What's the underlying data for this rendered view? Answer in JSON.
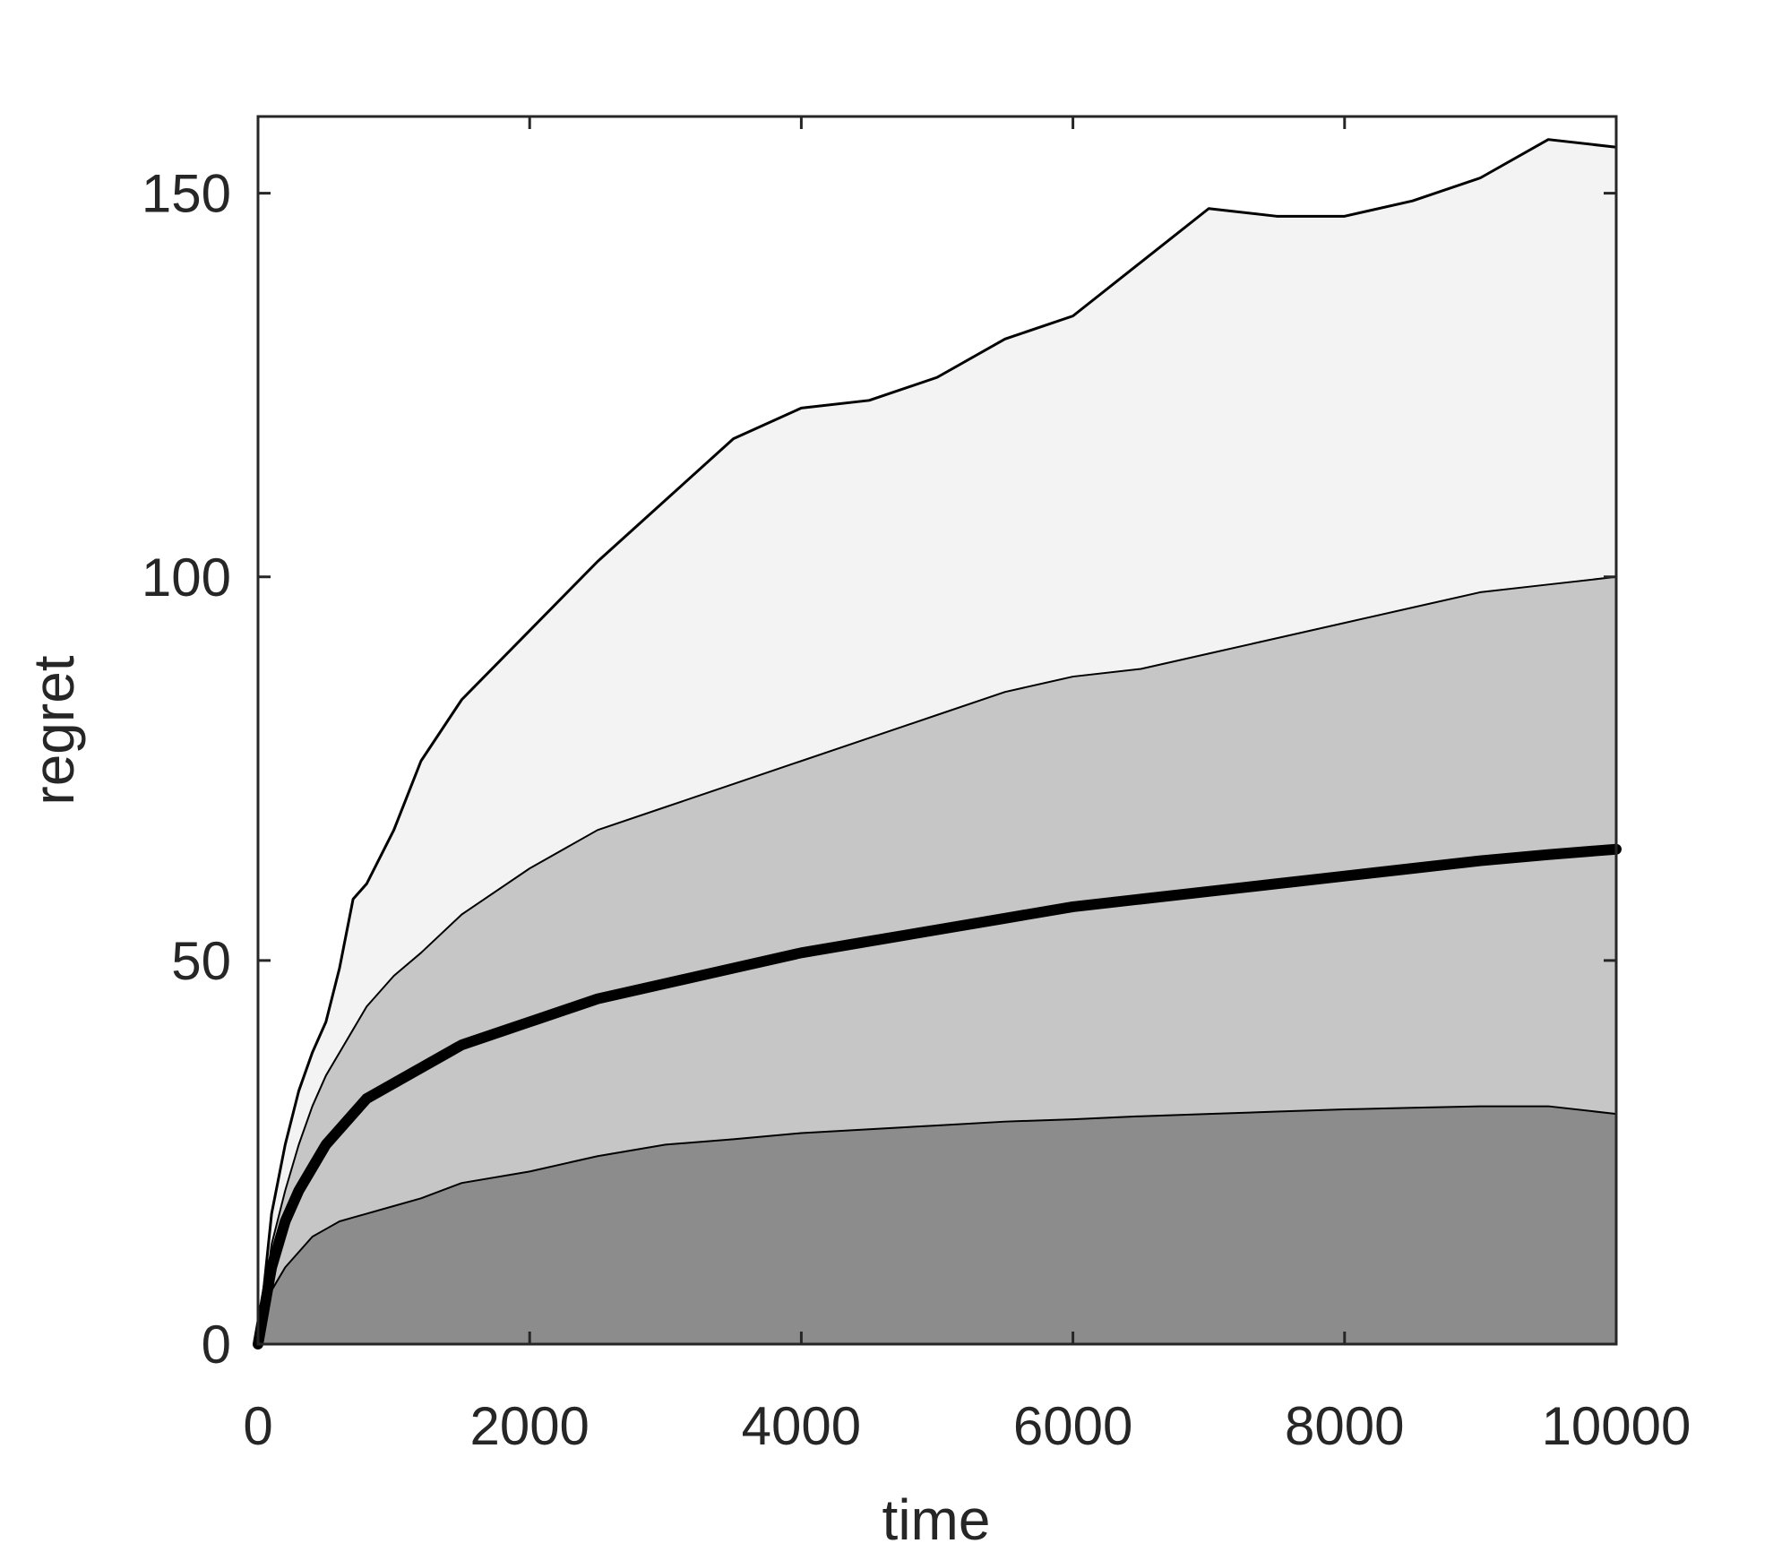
{
  "chart_data": {
    "type": "area",
    "xlabel": "time",
    "ylabel": "regret",
    "xlim": [
      0,
      10000
    ],
    "ylim": [
      0,
      160
    ],
    "x_ticks": [
      0,
      2000,
      4000,
      6000,
      8000,
      10000
    ],
    "y_ticks": [
      0,
      50,
      100,
      150
    ],
    "x_tick_labels": [
      "0",
      "2000",
      "4000",
      "6000",
      "8000",
      "10000"
    ],
    "y_tick_labels": [
      "0",
      "50",
      "100",
      "150"
    ],
    "grid": false,
    "colors": {
      "upper_band_fill": "#f3f3f3",
      "middle_band_fill": "#c6c6c6",
      "lower_band_fill": "#8c8c8c",
      "line": "#000000",
      "axis": "#262626"
    },
    "x": [
      0,
      100,
      200,
      300,
      400,
      500,
      600,
      700,
      800,
      1000,
      1200,
      1500,
      2000,
      2500,
      3000,
      3500,
      4000,
      4500,
      5000,
      5500,
      6000,
      6500,
      7000,
      7500,
      8000,
      8500,
      9000,
      9500,
      10000
    ],
    "series": [
      {
        "values": [
          0,
          17,
          26,
          33,
          38,
          42,
          49,
          58,
          60,
          67,
          76,
          84,
          93,
          102,
          110,
          118,
          122,
          123,
          126,
          131,
          134,
          141,
          148,
          147,
          147,
          149,
          152,
          157,
          156
        ]
      },
      {
        "values": [
          0,
          13,
          20,
          26,
          31,
          35,
          38,
          41,
          44,
          48,
          51,
          56,
          62,
          67,
          70,
          73,
          76,
          79,
          82,
          85,
          87,
          88,
          90,
          92,
          94,
          96,
          98,
          99,
          100
        ]
      },
      {
        "values": [
          0,
          10,
          16,
          20,
          23,
          26,
          28,
          30,
          32,
          34,
          36,
          39,
          42,
          45,
          47,
          49,
          51,
          52.5,
          54,
          55.5,
          57,
          58,
          59,
          60,
          61,
          62,
          63,
          63.8,
          64.5
        ]
      },
      {
        "values": [
          0,
          7,
          10,
          12,
          14,
          15,
          16,
          16.5,
          17,
          18,
          19,
          21,
          22.5,
          24.5,
          26,
          26.7,
          27.5,
          28,
          28.5,
          29,
          29.3,
          29.7,
          30,
          30.3,
          30.6,
          30.8,
          31,
          31,
          30
        ]
      }
    ]
  }
}
